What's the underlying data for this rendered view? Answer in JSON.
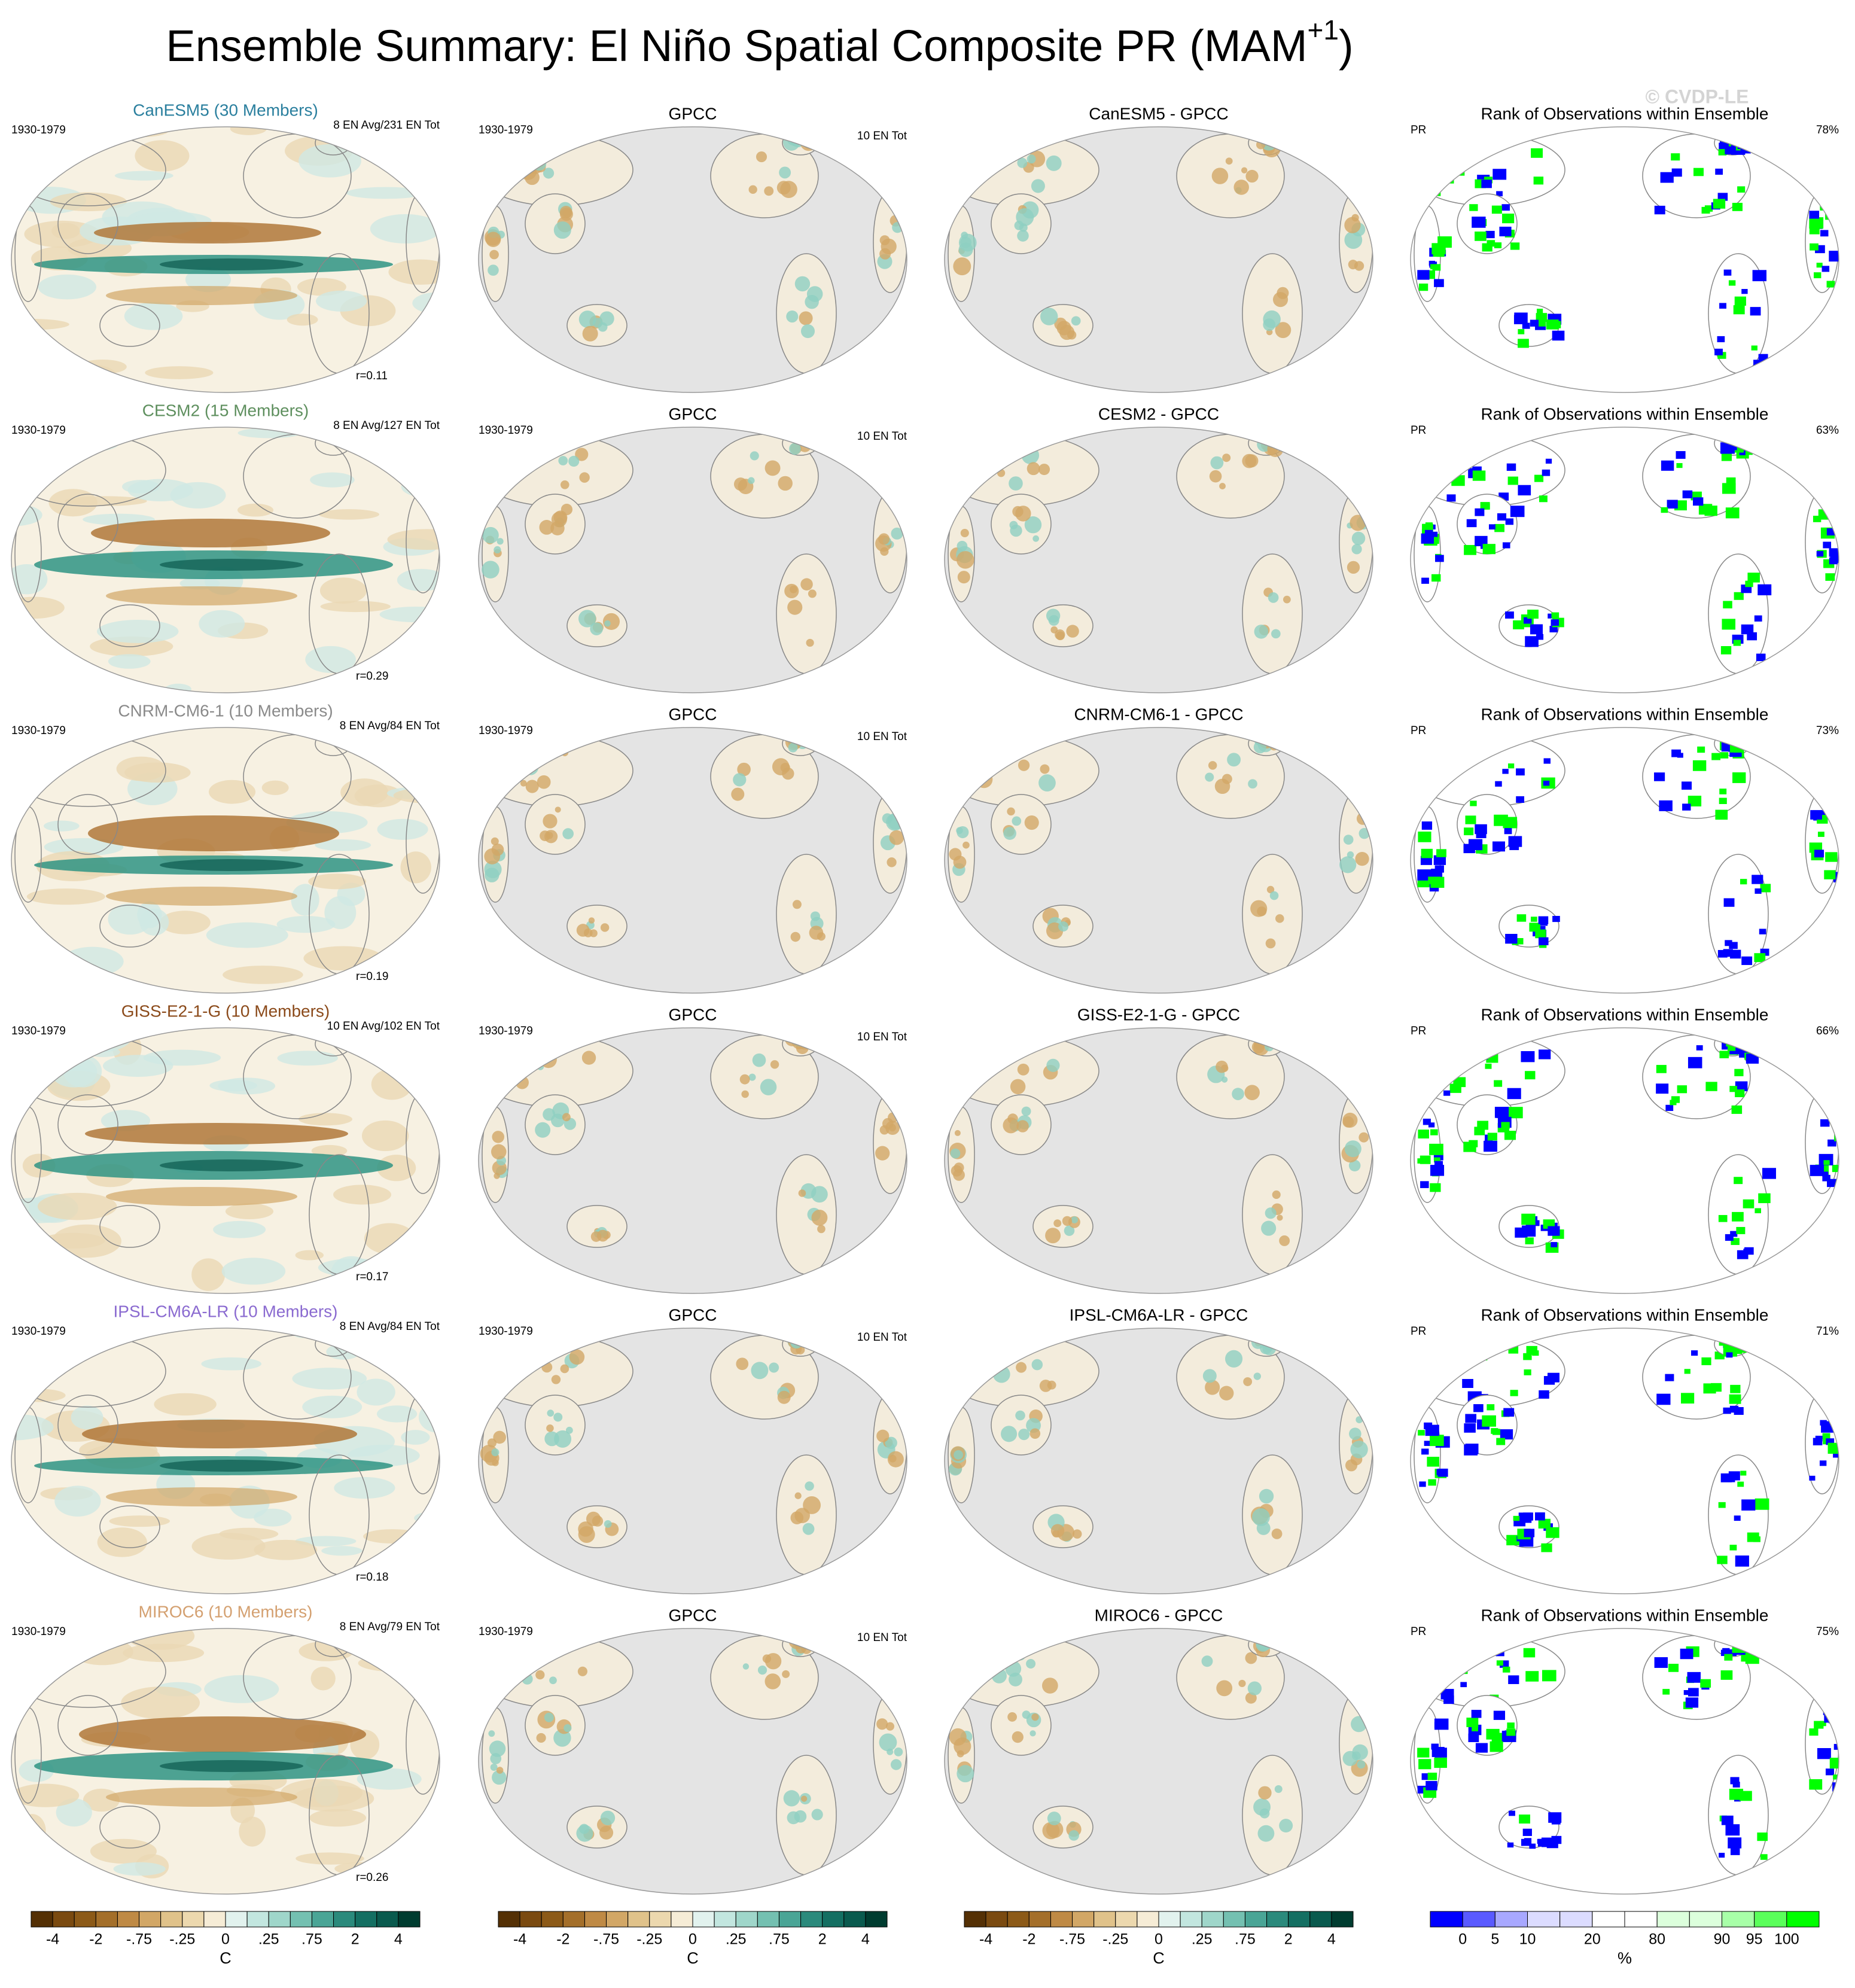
{
  "title": {
    "main": "Ensemble Summary: El Niño Spatial Composite PR (MAM",
    "sup": "+1",
    "end": ")"
  },
  "watermark": "© CVDP-LE",
  "rows": [
    {
      "model": {
        "text": "CanESM5 (30 Members)",
        "color": "#2a7f9e"
      },
      "period": "1930-1979",
      "en_info": "8 EN Avg/231 EN Tot",
      "r": "r=0.11",
      "obs_title": "GPCC",
      "obs_period": "1930-1979",
      "obs_info": "10 EN Tot",
      "diff_title": "CanESM5 - GPCC",
      "rank_title": "Rank of Observations within Ensemble",
      "rank_var": "PR",
      "rank_pct": "78%"
    },
    {
      "model": {
        "text": "CESM2 (15 Members)",
        "color": "#5e8f5e"
      },
      "period": "1930-1979",
      "en_info": "8 EN Avg/127 EN Tot",
      "r": "r=0.29",
      "obs_title": "GPCC",
      "obs_period": "1930-1979",
      "obs_info": "10 EN Tot",
      "diff_title": "CESM2 - GPCC",
      "rank_title": "Rank of Observations within Ensemble",
      "rank_var": "PR",
      "rank_pct": "63%"
    },
    {
      "model": {
        "text": "CNRM-CM6-1 (10 Members)",
        "color": "#8a8a8a"
      },
      "period": "1930-1979",
      "en_info": "8 EN Avg/84 EN Tot",
      "r": "r=0.19",
      "obs_title": "GPCC",
      "obs_period": "1930-1979",
      "obs_info": "10 EN Tot",
      "diff_title": "CNRM-CM6-1 - GPCC",
      "rank_title": "Rank of Observations within Ensemble",
      "rank_var": "PR",
      "rank_pct": "73%"
    },
    {
      "model": {
        "text": "GISS-E2-1-G (10 Members)",
        "color": "#8b4a1a"
      },
      "period": "1930-1979",
      "en_info": "10 EN Avg/102 EN Tot",
      "r": "r=0.17",
      "obs_title": "GPCC",
      "obs_period": "1930-1979",
      "obs_info": "10 EN Tot",
      "diff_title": "GISS-E2-1-G - GPCC",
      "rank_title": "Rank of Observations within Ensemble",
      "rank_var": "PR",
      "rank_pct": "66%"
    },
    {
      "model": {
        "text": "IPSL-CM6A-LR (10 Members)",
        "color": "#8a6ad0"
      },
      "period": "1930-1979",
      "en_info": "8 EN Avg/84 EN Tot",
      "r": "r=0.18",
      "obs_title": "GPCC",
      "obs_period": "1930-1979",
      "obs_info": "10 EN Tot",
      "diff_title": "IPSL-CM6A-LR - GPCC",
      "rank_title": "Rank of Observations within Ensemble",
      "rank_var": "PR",
      "rank_pct": "71%"
    },
    {
      "model": {
        "text": "MIROC6 (10 Members)",
        "color": "#d4a070"
      },
      "period": "1930-1979",
      "en_info": "8 EN Avg/79 EN Tot",
      "r": "r=0.26",
      "obs_title": "GPCC",
      "obs_period": "1930-1979",
      "obs_info": "10 EN Tot",
      "diff_title": "MIROC6 - GPCC",
      "rank_title": "Rank of Observations within Ensemble",
      "rank_var": "PR",
      "rank_pct": "75%"
    }
  ],
  "colorbars": [
    {
      "colors": [
        "#543005",
        "#7a4a10",
        "#8c5a18",
        "#a46f2a",
        "#bf8a45",
        "#d2a766",
        "#e0c28a",
        "#ecd8ae",
        "#f6ecd6",
        "#e2f2ee",
        "#c2e6df",
        "#9fd6ca",
        "#74c0b1",
        "#4aa596",
        "#2b8a7c",
        "#146f62",
        "#0a5a4e",
        "#003c30"
      ],
      "labels": [
        "-4",
        "-2",
        "-.75",
        "-.25",
        "0",
        ".25",
        ".75",
        "2",
        "4"
      ],
      "unit": "C"
    },
    {
      "colors": [
        "#543005",
        "#7a4a10",
        "#8c5a18",
        "#a46f2a",
        "#bf8a45",
        "#d2a766",
        "#e0c28a",
        "#ecd8ae",
        "#f6ecd6",
        "#e2f2ee",
        "#c2e6df",
        "#9fd6ca",
        "#74c0b1",
        "#4aa596",
        "#2b8a7c",
        "#146f62",
        "#0a5a4e",
        "#003c30"
      ],
      "labels": [
        "-4",
        "-2",
        "-.75",
        "-.25",
        "0",
        ".25",
        ".75",
        "2",
        "4"
      ],
      "unit": "C"
    },
    {
      "colors": [
        "#543005",
        "#7a4a10",
        "#8c5a18",
        "#a46f2a",
        "#bf8a45",
        "#d2a766",
        "#e0c28a",
        "#ecd8ae",
        "#f6ecd6",
        "#e2f2ee",
        "#c2e6df",
        "#9fd6ca",
        "#74c0b1",
        "#4aa596",
        "#2b8a7c",
        "#146f62",
        "#0a5a4e",
        "#003c30"
      ],
      "labels": [
        "-4",
        "-2",
        "-.75",
        "-.25",
        "0",
        ".25",
        ".75",
        "2",
        "4"
      ],
      "unit": "C"
    },
    {
      "colors": [
        "#0000ff",
        "#5a5aff",
        "#a8a8ff",
        "#dcdcff",
        "#dcdcff",
        "#ffffff",
        "#ffffff",
        "#dcffdc",
        "#dcffdc",
        "#a8ffa8",
        "#5aff5a",
        "#00ff00"
      ],
      "labels": [
        "0",
        "5",
        "10",
        "20",
        "80",
        "90",
        "95",
        "100"
      ],
      "unit": "%"
    }
  ]
}
